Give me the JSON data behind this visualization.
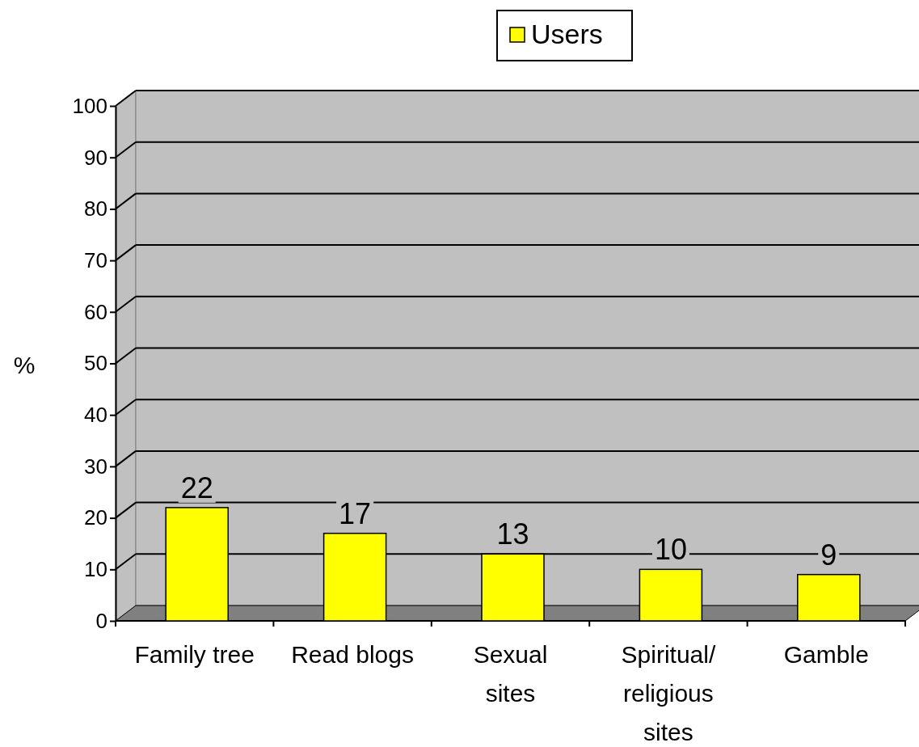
{
  "chart_data": {
    "type": "bar",
    "ylabel": "%",
    "categories": [
      "Family tree",
      "Read blogs",
      "Sexual sites",
      "Spiritual/ religious sites",
      "Gamble"
    ],
    "series": [
      {
        "name": "Users",
        "color": "#ffff00",
        "values": [
          22,
          17,
          13,
          10,
          9
        ]
      }
    ],
    "ylim": [
      0,
      100
    ],
    "yticks": [
      0,
      10,
      20,
      30,
      40,
      50,
      60,
      70,
      80,
      90,
      100
    ],
    "grid": "y",
    "legend": "top",
    "data_labels": true
  }
}
